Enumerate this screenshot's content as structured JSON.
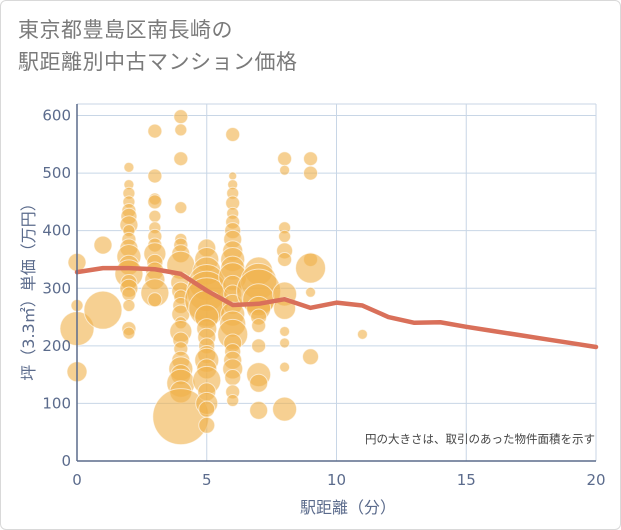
{
  "title_line1": "東京都豊島区南長崎の",
  "title_line2": "駅距離別中古マンション価格",
  "chart_data": {
    "type": "scatter",
    "xlabel": "駅距離（分）",
    "ylabel": "坪（3.3㎡）単価（万円）",
    "xlim": [
      0,
      20
    ],
    "ylim": [
      0,
      620
    ],
    "xticks": [
      0,
      5,
      10,
      15,
      20
    ],
    "yticks": [
      0,
      100,
      200,
      300,
      400,
      500,
      600
    ],
    "grid": true,
    "note": "円の大きさは、取引のあった物件面積を示す",
    "colors": {
      "bubble": "#f0b04a",
      "line": "#d9705a",
      "grid": "#c8d6e6",
      "axis": "#5b6b8c"
    },
    "bubbles": [
      {
        "x": 0,
        "y": 345,
        "s": 9
      },
      {
        "x": 0,
        "y": 270,
        "s": 6
      },
      {
        "x": 0,
        "y": 230,
        "s": 17
      },
      {
        "x": 0,
        "y": 155,
        "s": 10
      },
      {
        "x": 1,
        "y": 375,
        "s": 9
      },
      {
        "x": 1,
        "y": 262,
        "s": 19
      },
      {
        "x": 2,
        "y": 510,
        "s": 5
      },
      {
        "x": 2,
        "y": 480,
        "s": 5
      },
      {
        "x": 2,
        "y": 465,
        "s": 6
      },
      {
        "x": 2,
        "y": 450,
        "s": 6
      },
      {
        "x": 2,
        "y": 435,
        "s": 7
      },
      {
        "x": 2,
        "y": 425,
        "s": 8
      },
      {
        "x": 2,
        "y": 410,
        "s": 9
      },
      {
        "x": 2,
        "y": 400,
        "s": 6
      },
      {
        "x": 2,
        "y": 385,
        "s": 7
      },
      {
        "x": 2,
        "y": 370,
        "s": 9
      },
      {
        "x": 2,
        "y": 355,
        "s": 12
      },
      {
        "x": 2,
        "y": 340,
        "s": 10
      },
      {
        "x": 2,
        "y": 325,
        "s": 14
      },
      {
        "x": 2,
        "y": 310,
        "s": 8
      },
      {
        "x": 2,
        "y": 300,
        "s": 9
      },
      {
        "x": 2,
        "y": 290,
        "s": 7
      },
      {
        "x": 2,
        "y": 270,
        "s": 6
      },
      {
        "x": 2,
        "y": 230,
        "s": 7
      },
      {
        "x": 2,
        "y": 222,
        "s": 6
      },
      {
        "x": 3,
        "y": 573,
        "s": 7
      },
      {
        "x": 3,
        "y": 495,
        "s": 7
      },
      {
        "x": 3,
        "y": 455,
        "s": 6
      },
      {
        "x": 3,
        "y": 450,
        "s": 7
      },
      {
        "x": 3,
        "y": 425,
        "s": 6
      },
      {
        "x": 3,
        "y": 405,
        "s": 6
      },
      {
        "x": 3,
        "y": 390,
        "s": 7
      },
      {
        "x": 3,
        "y": 375,
        "s": 7
      },
      {
        "x": 3,
        "y": 360,
        "s": 11
      },
      {
        "x": 3,
        "y": 345,
        "s": 8
      },
      {
        "x": 3,
        "y": 330,
        "s": 9
      },
      {
        "x": 3,
        "y": 315,
        "s": 10
      },
      {
        "x": 3,
        "y": 292,
        "s": 14
      },
      {
        "x": 3,
        "y": 280,
        "s": 7
      },
      {
        "x": 4,
        "y": 598,
        "s": 7
      },
      {
        "x": 4,
        "y": 575,
        "s": 6
      },
      {
        "x": 4,
        "y": 525,
        "s": 7
      },
      {
        "x": 4,
        "y": 440,
        "s": 6
      },
      {
        "x": 4,
        "y": 385,
        "s": 6
      },
      {
        "x": 4,
        "y": 375,
        "s": 7
      },
      {
        "x": 4,
        "y": 360,
        "s": 9
      },
      {
        "x": 4,
        "y": 340,
        "s": 14
      },
      {
        "x": 4,
        "y": 310,
        "s": 10
      },
      {
        "x": 4,
        "y": 295,
        "s": 9
      },
      {
        "x": 4,
        "y": 285,
        "s": 7
      },
      {
        "x": 4,
        "y": 270,
        "s": 8
      },
      {
        "x": 4,
        "y": 255,
        "s": 9
      },
      {
        "x": 4,
        "y": 240,
        "s": 6
      },
      {
        "x": 4,
        "y": 225,
        "s": 11
      },
      {
        "x": 4,
        "y": 210,
        "s": 8
      },
      {
        "x": 4,
        "y": 195,
        "s": 7
      },
      {
        "x": 4,
        "y": 175,
        "s": 9
      },
      {
        "x": 4,
        "y": 160,
        "s": 12
      },
      {
        "x": 4,
        "y": 150,
        "s": 10
      },
      {
        "x": 4,
        "y": 135,
        "s": 14
      },
      {
        "x": 4,
        "y": 120,
        "s": 11
      },
      {
        "x": 4,
        "y": 77,
        "s": 28
      },
      {
        "x": 5,
        "y": 370,
        "s": 9
      },
      {
        "x": 5,
        "y": 350,
        "s": 12
      },
      {
        "x": 5,
        "y": 330,
        "s": 14
      },
      {
        "x": 5,
        "y": 310,
        "s": 18
      },
      {
        "x": 5,
        "y": 295,
        "s": 20
      },
      {
        "x": 5,
        "y": 280,
        "s": 22
      },
      {
        "x": 5,
        "y": 265,
        "s": 18
      },
      {
        "x": 5,
        "y": 250,
        "s": 12
      },
      {
        "x": 5,
        "y": 230,
        "s": 10
      },
      {
        "x": 5,
        "y": 215,
        "s": 9
      },
      {
        "x": 5,
        "y": 200,
        "s": 8
      },
      {
        "x": 5,
        "y": 185,
        "s": 9
      },
      {
        "x": 5,
        "y": 175,
        "s": 12
      },
      {
        "x": 5,
        "y": 160,
        "s": 10
      },
      {
        "x": 5,
        "y": 140,
        "s": 14
      },
      {
        "x": 5,
        "y": 120,
        "s": 9
      },
      {
        "x": 5,
        "y": 100,
        "s": 11
      },
      {
        "x": 5,
        "y": 90,
        "s": 8
      },
      {
        "x": 5,
        "y": 62,
        "s": 8
      },
      {
        "x": 6,
        "y": 567,
        "s": 7
      },
      {
        "x": 6,
        "y": 495,
        "s": 4
      },
      {
        "x": 6,
        "y": 480,
        "s": 5
      },
      {
        "x": 6,
        "y": 465,
        "s": 6
      },
      {
        "x": 6,
        "y": 448,
        "s": 7
      },
      {
        "x": 6,
        "y": 430,
        "s": 6
      },
      {
        "x": 6,
        "y": 415,
        "s": 7
      },
      {
        "x": 6,
        "y": 400,
        "s": 8
      },
      {
        "x": 6,
        "y": 385,
        "s": 9
      },
      {
        "x": 6,
        "y": 365,
        "s": 10
      },
      {
        "x": 6,
        "y": 350,
        "s": 12
      },
      {
        "x": 6,
        "y": 335,
        "s": 12
      },
      {
        "x": 6,
        "y": 320,
        "s": 14
      },
      {
        "x": 6,
        "y": 305,
        "s": 10
      },
      {
        "x": 6,
        "y": 290,
        "s": 9
      },
      {
        "x": 6,
        "y": 272,
        "s": 10
      },
      {
        "x": 6,
        "y": 255,
        "s": 12
      },
      {
        "x": 6,
        "y": 238,
        "s": 13
      },
      {
        "x": 6,
        "y": 220,
        "s": 15
      },
      {
        "x": 6,
        "y": 205,
        "s": 9
      },
      {
        "x": 6,
        "y": 190,
        "s": 8
      },
      {
        "x": 6,
        "y": 175,
        "s": 9
      },
      {
        "x": 6,
        "y": 160,
        "s": 10
      },
      {
        "x": 6,
        "y": 145,
        "s": 8
      },
      {
        "x": 6,
        "y": 120,
        "s": 7
      },
      {
        "x": 6,
        "y": 105,
        "s": 6
      },
      {
        "x": 7,
        "y": 330,
        "s": 14
      },
      {
        "x": 7,
        "y": 312,
        "s": 18
      },
      {
        "x": 7,
        "y": 295,
        "s": 22
      },
      {
        "x": 7,
        "y": 280,
        "s": 16
      },
      {
        "x": 7,
        "y": 265,
        "s": 12
      },
      {
        "x": 7,
        "y": 250,
        "s": 8
      },
      {
        "x": 7,
        "y": 235,
        "s": 7
      },
      {
        "x": 7,
        "y": 200,
        "s": 7
      },
      {
        "x": 7,
        "y": 150,
        "s": 12
      },
      {
        "x": 7,
        "y": 135,
        "s": 9
      },
      {
        "x": 7,
        "y": 88,
        "s": 9
      },
      {
        "x": 8,
        "y": 525,
        "s": 7
      },
      {
        "x": 8,
        "y": 505,
        "s": 5
      },
      {
        "x": 8,
        "y": 405,
        "s": 6
      },
      {
        "x": 8,
        "y": 390,
        "s": 6
      },
      {
        "x": 8,
        "y": 365,
        "s": 8
      },
      {
        "x": 8,
        "y": 350,
        "s": 7
      },
      {
        "x": 8,
        "y": 290,
        "s": 12
      },
      {
        "x": 8,
        "y": 265,
        "s": 11
      },
      {
        "x": 8,
        "y": 225,
        "s": 5
      },
      {
        "x": 8,
        "y": 205,
        "s": 5
      },
      {
        "x": 8,
        "y": 163,
        "s": 5
      },
      {
        "x": 8,
        "y": 90,
        "s": 12
      },
      {
        "x": 9,
        "y": 525,
        "s": 7
      },
      {
        "x": 9,
        "y": 500,
        "s": 7
      },
      {
        "x": 9,
        "y": 350,
        "s": 7
      },
      {
        "x": 9,
        "y": 335,
        "s": 15
      },
      {
        "x": 9,
        "y": 293,
        "s": 5
      },
      {
        "x": 9,
        "y": 181,
        "s": 8
      },
      {
        "x": 11,
        "y": 220,
        "s": 5
      }
    ],
    "line": {
      "x": [
        0,
        1,
        2,
        3,
        4,
        5,
        6,
        7,
        8,
        9,
        10,
        11,
        12,
        13,
        14,
        15,
        16,
        17,
        18,
        19,
        20
      ],
      "y": [
        328,
        335,
        335,
        333,
        325,
        296,
        271,
        273,
        281,
        266,
        275,
        270,
        250,
        240,
        241,
        233,
        226,
        219,
        212,
        205,
        198
      ]
    }
  }
}
